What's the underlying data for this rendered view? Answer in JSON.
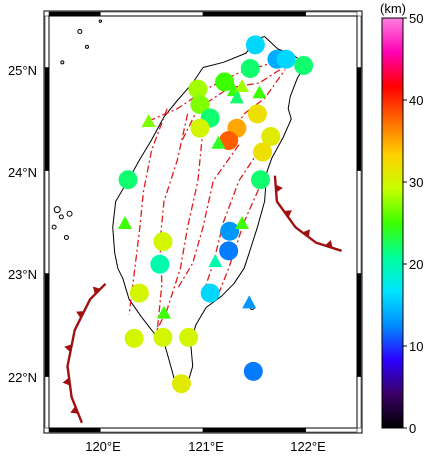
{
  "map": {
    "lon_labels": [
      "120°E",
      "121°E",
      "122°E"
    ],
    "lat_labels": [
      "25°N",
      "24°N",
      "23°N",
      "22°N"
    ],
    "lon_ticks": [
      120,
      121,
      122
    ],
    "lat_ticks": [
      25,
      24,
      23,
      22
    ],
    "lon_range": [
      119.5,
      122.5
    ],
    "lat_range": [
      21.5,
      25.5
    ],
    "fault_color": "#e01b1b",
    "trench_color": "#a01010"
  },
  "colorbar": {
    "unit": "(km)",
    "tick_labels": [
      "50",
      "40",
      "30",
      "20",
      "10",
      "0"
    ],
    "range": [
      0,
      50
    ],
    "colors": [
      "#000000",
      "#3a0066",
      "#2b00ff",
      "#008cff",
      "#00e5ff",
      "#00ff9a",
      "#3cff00",
      "#c8ff00",
      "#ffd000",
      "#ff6a00",
      "#ff0000",
      "#ff00b4",
      "#ff80e0"
    ]
  },
  "stations": [
    {
      "lon": 121.51,
      "lat": 25.22,
      "depth": 16,
      "type": "circle"
    },
    {
      "lon": 121.72,
      "lat": 25.08,
      "depth": 14,
      "type": "circle"
    },
    {
      "lon": 121.81,
      "lat": 25.08,
      "depth": 16,
      "type": "circle"
    },
    {
      "lon": 121.98,
      "lat": 25.02,
      "depth": 22,
      "type": "circle"
    },
    {
      "lon": 121.46,
      "lat": 24.99,
      "depth": 22,
      "type": "circle"
    },
    {
      "lon": 121.21,
      "lat": 24.86,
      "depth": 25,
      "type": "circle"
    },
    {
      "lon": 120.95,
      "lat": 24.79,
      "depth": 28,
      "type": "circle"
    },
    {
      "lon": 120.97,
      "lat": 24.64,
      "depth": 27,
      "type": "circle"
    },
    {
      "lon": 121.07,
      "lat": 24.51,
      "depth": 22,
      "type": "circle"
    },
    {
      "lon": 120.97,
      "lat": 24.41,
      "depth": 30,
      "type": "circle"
    },
    {
      "lon": 121.53,
      "lat": 24.55,
      "depth": 32,
      "type": "circle"
    },
    {
      "lon": 121.33,
      "lat": 24.41,
      "depth": 35,
      "type": "circle"
    },
    {
      "lon": 121.25,
      "lat": 24.29,
      "depth": 38,
      "type": "circle"
    },
    {
      "lon": 121.66,
      "lat": 24.33,
      "depth": 31,
      "type": "circle"
    },
    {
      "lon": 121.58,
      "lat": 24.18,
      "depth": 32,
      "type": "circle"
    },
    {
      "lon": 121.56,
      "lat": 23.91,
      "depth": 22,
      "type": "circle"
    },
    {
      "lon": 120.27,
      "lat": 23.91,
      "depth": 22,
      "type": "circle"
    },
    {
      "lon": 121.26,
      "lat": 23.41,
      "depth": 13,
      "type": "circle"
    },
    {
      "lon": 120.61,
      "lat": 23.31,
      "depth": 30,
      "type": "circle"
    },
    {
      "lon": 121.25,
      "lat": 23.22,
      "depth": 12,
      "type": "circle"
    },
    {
      "lon": 120.58,
      "lat": 23.09,
      "depth": 20,
      "type": "circle"
    },
    {
      "lon": 120.38,
      "lat": 22.81,
      "depth": 30,
      "type": "circle"
    },
    {
      "lon": 121.07,
      "lat": 22.81,
      "depth": 16,
      "type": "circle"
    },
    {
      "lon": 120.33,
      "lat": 22.37,
      "depth": 30,
      "type": "circle"
    },
    {
      "lon": 120.61,
      "lat": 22.38,
      "depth": 30,
      "type": "circle"
    },
    {
      "lon": 120.86,
      "lat": 22.38,
      "depth": 30,
      "type": "circle"
    },
    {
      "lon": 121.49,
      "lat": 22.05,
      "depth": 12,
      "type": "circle"
    },
    {
      "lon": 120.79,
      "lat": 21.93,
      "depth": 31,
      "type": "circle"
    },
    {
      "lon": 121.3,
      "lat": 24.78,
      "depth": 25,
      "type": "triangle"
    },
    {
      "lon": 121.38,
      "lat": 24.82,
      "depth": 28,
      "type": "triangle"
    },
    {
      "lon": 121.33,
      "lat": 24.71,
      "depth": 22,
      "type": "triangle"
    },
    {
      "lon": 121.55,
      "lat": 24.76,
      "depth": 25,
      "type": "triangle"
    },
    {
      "lon": 120.47,
      "lat": 24.48,
      "depth": 27,
      "type": "triangle"
    },
    {
      "lon": 121.15,
      "lat": 24.27,
      "depth": 24,
      "type": "triangle"
    },
    {
      "lon": 120.24,
      "lat": 23.49,
      "depth": 25,
      "type": "triangle"
    },
    {
      "lon": 121.38,
      "lat": 23.49,
      "depth": 25,
      "type": "triangle"
    },
    {
      "lon": 121.12,
      "lat": 23.12,
      "depth": 20,
      "type": "triangle"
    },
    {
      "lon": 120.62,
      "lat": 22.62,
      "depth": 25,
      "type": "triangle"
    },
    {
      "lon": 121.45,
      "lat": 22.72,
      "depth": 13,
      "type": "triangle"
    }
  ]
}
